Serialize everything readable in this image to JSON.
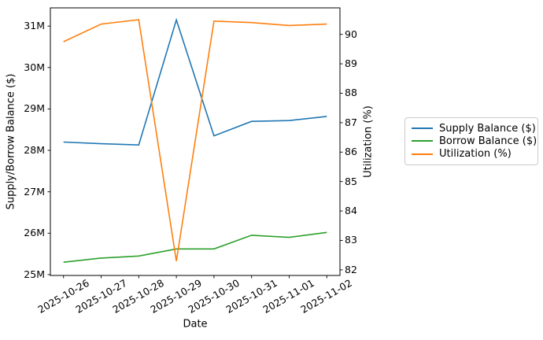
{
  "chart_data": {
    "type": "line",
    "title": "",
    "xlabel": "Date",
    "ylabel_left": "Supply/Borrow Balance ($)",
    "ylabel_right": "Utilization (%)",
    "grid": false,
    "categories": [
      "2025-10-26",
      "2025-10-27",
      "2025-10-28",
      "2025-10-29",
      "2025-10-30",
      "2025-10-31",
      "2025-11-01",
      "2025-11-02"
    ],
    "series": [
      {
        "name": "Supply Balance ($)",
        "axis": "left",
        "color": "#1f77b4",
        "unit": "USD millions",
        "values": [
          28.2,
          28.16,
          28.13,
          31.15,
          28.35,
          28.7,
          28.72,
          28.82
        ]
      },
      {
        "name": "Borrow Balance ($)",
        "axis": "left",
        "color": "#2ca02c",
        "unit": "USD millions",
        "values": [
          25.3,
          25.4,
          25.45,
          25.62,
          25.62,
          25.95,
          25.9,
          26.02
        ]
      },
      {
        "name": "Utilization (%)",
        "axis": "right",
        "color": "#ff7f0e",
        "unit": "percent",
        "values": [
          89.75,
          90.35,
          90.5,
          82.3,
          90.45,
          90.4,
          90.3,
          90.35
        ]
      }
    ],
    "y_axis_left": {
      "tick_values": [
        25,
        26,
        27,
        28,
        29,
        30,
        31
      ],
      "tick_labels": [
        "25M",
        "26M",
        "27M",
        "28M",
        "29M",
        "30M",
        "31M"
      ],
      "lim": [
        24.98,
        31.44
      ]
    },
    "y_axis_right": {
      "tick_values": [
        82,
        83,
        84,
        85,
        86,
        87,
        88,
        89,
        90
      ],
      "tick_labels": [
        "82",
        "83",
        "84",
        "85",
        "86",
        "87",
        "88",
        "89",
        "90"
      ],
      "lim": [
        81.81,
        90.9
      ]
    },
    "x_axis": {
      "tick_labels": [
        "2025-10-26",
        "2025-10-27",
        "2025-10-28",
        "2025-10-29",
        "2025-10-30",
        "2025-10-31",
        "2025-11-01",
        "2025-11-02"
      ],
      "rotation_deg": 30
    },
    "legend": {
      "position": "center-right outside plot"
    }
  }
}
